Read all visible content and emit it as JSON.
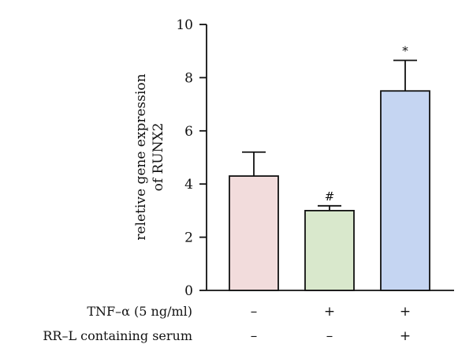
{
  "chart_data": {
    "type": "bar",
    "ylabel_line1": "reletive gene expression",
    "ylabel_line2": "of RUNX2",
    "ylim": [
      0,
      10
    ],
    "yticks": [
      0,
      2,
      4,
      6,
      8,
      10
    ],
    "grid": false,
    "bars": [
      {
        "value": 4.3,
        "error": 0.9,
        "annotation": "",
        "color": "#f2dcdc"
      },
      {
        "value": 3.0,
        "error": 0.18,
        "annotation": "#",
        "color": "#d9e8cc"
      },
      {
        "value": 7.5,
        "error": 1.15,
        "annotation": "*",
        "color": "#c5d5f2"
      }
    ],
    "conditions": [
      {
        "label": "TNF–α (5 ng/ml)",
        "marks": [
          "–",
          "+",
          "+"
        ]
      },
      {
        "label": "RR–L containing serum",
        "marks": [
          "–",
          "–",
          "+"
        ]
      }
    ]
  }
}
